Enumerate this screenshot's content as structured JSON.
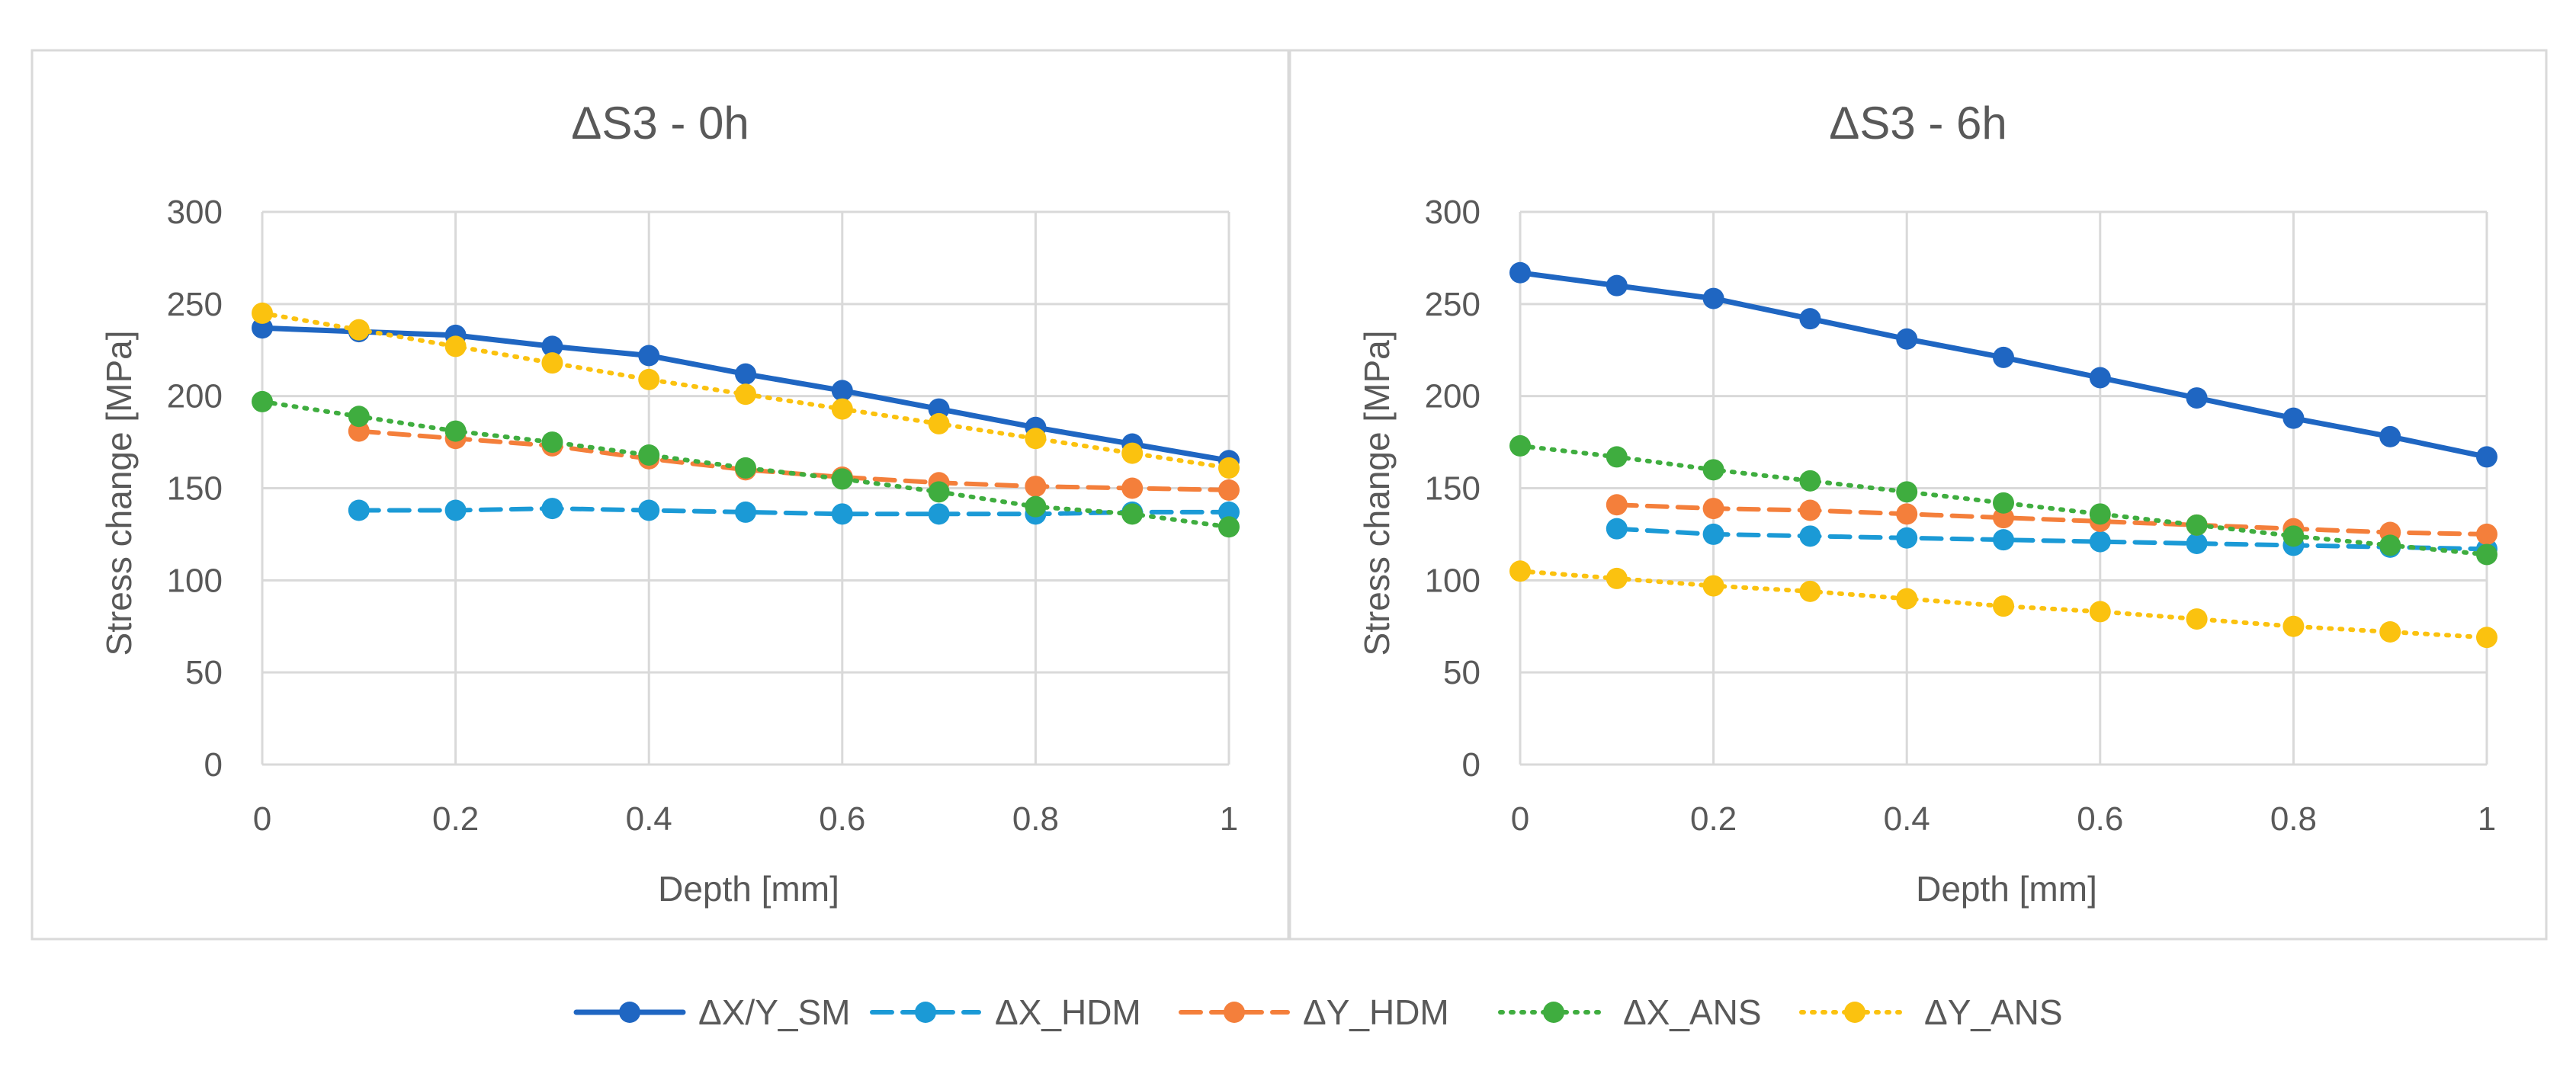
{
  "chart_data": [
    {
      "type": "line",
      "title": "ΔS3 - 0h",
      "xlabel": "Depth [mm]",
      "ylabel": "Stress change [MPa]",
      "xlim": [
        0,
        1
      ],
      "ylim": [
        0,
        300
      ],
      "xticks": [
        0,
        0.2,
        0.4,
        0.6,
        0.8,
        1
      ],
      "xtick_labels": [
        "0",
        "0.2",
        "0.4",
        "0.6",
        "0.8",
        "1"
      ],
      "yticks": [
        0,
        50,
        100,
        150,
        200,
        250,
        300
      ],
      "ytick_labels": [
        "0",
        "50",
        "100",
        "150",
        "200",
        "250",
        "300"
      ],
      "grid": true,
      "series": [
        {
          "name": "ΔX/Y_SM",
          "x": [
            0,
            0.1,
            0.2,
            0.3,
            0.4,
            0.5,
            0.6,
            0.7,
            0.8,
            0.9,
            1
          ],
          "values": [
            237,
            235,
            233,
            227,
            222,
            212,
            203,
            193,
            183,
            174,
            165
          ]
        },
        {
          "name": "ΔX_HDM",
          "x": [
            0.1,
            0.2,
            0.3,
            0.4,
            0.5,
            0.6,
            0.7,
            0.8,
            0.9,
            1
          ],
          "values": [
            138,
            138,
            139,
            138,
            137,
            136,
            136,
            136,
            137,
            137
          ]
        },
        {
          "name": "ΔY_HDM",
          "x": [
            0.1,
            0.2,
            0.3,
            0.4,
            0.5,
            0.6,
            0.7,
            0.8,
            0.9,
            1
          ],
          "values": [
            181,
            177,
            173,
            166,
            160,
            156,
            153,
            151,
            150,
            149
          ]
        },
        {
          "name": "ΔX_ANS",
          "x": [
            0,
            0.1,
            0.2,
            0.3,
            0.4,
            0.5,
            0.6,
            0.7,
            0.8,
            0.9,
            1
          ],
          "values": [
            197,
            189,
            181,
            175,
            168,
            161,
            155,
            148,
            140,
            136,
            129
          ]
        },
        {
          "name": "ΔY_ANS",
          "x": [
            0,
            0.1,
            0.2,
            0.3,
            0.4,
            0.5,
            0.6,
            0.7,
            0.8,
            0.9,
            1
          ],
          "values": [
            245,
            236,
            227,
            218,
            209,
            201,
            193,
            185,
            177,
            169,
            161
          ]
        }
      ]
    },
    {
      "type": "line",
      "title": "ΔS3 - 6h",
      "xlabel": "Depth [mm]",
      "ylabel": "Stress change [MPa]",
      "xlim": [
        0,
        1
      ],
      "ylim": [
        0,
        300
      ],
      "xticks": [
        0,
        0.2,
        0.4,
        0.6,
        0.8,
        1
      ],
      "xtick_labels": [
        "0",
        "0.2",
        "0.4",
        "0.6",
        "0.8",
        "1"
      ],
      "yticks": [
        0,
        50,
        100,
        150,
        200,
        250,
        300
      ],
      "ytick_labels": [
        "0",
        "50",
        "100",
        "150",
        "200",
        "250",
        "300"
      ],
      "grid": true,
      "series": [
        {
          "name": "ΔX/Y_SM",
          "x": [
            0,
            0.1,
            0.2,
            0.3,
            0.4,
            0.5,
            0.6,
            0.7,
            0.8,
            0.9,
            1
          ],
          "values": [
            267,
            260,
            253,
            242,
            231,
            221,
            210,
            199,
            188,
            178,
            167
          ]
        },
        {
          "name": "ΔX_HDM",
          "x": [
            0.1,
            0.2,
            0.3,
            0.4,
            0.5,
            0.6,
            0.7,
            0.8,
            0.9,
            1
          ],
          "values": [
            128,
            125,
            124,
            123,
            122,
            121,
            120,
            119,
            118,
            117
          ]
        },
        {
          "name": "ΔY_HDM",
          "x": [
            0.1,
            0.2,
            0.3,
            0.4,
            0.5,
            0.6,
            0.7,
            0.8,
            0.9,
            1
          ],
          "values": [
            141,
            139,
            138,
            136,
            134,
            132,
            130,
            128,
            126,
            125
          ]
        },
        {
          "name": "ΔX_ANS",
          "x": [
            0,
            0.1,
            0.2,
            0.3,
            0.4,
            0.5,
            0.6,
            0.7,
            0.8,
            0.9,
            1
          ],
          "values": [
            173,
            167,
            160,
            154,
            148,
            142,
            136,
            130,
            124,
            119,
            114
          ]
        },
        {
          "name": "ΔY_ANS",
          "x": [
            0,
            0.1,
            0.2,
            0.3,
            0.4,
            0.5,
            0.6,
            0.7,
            0.8,
            0.9,
            1
          ],
          "values": [
            105,
            101,
            97,
            94,
            90,
            86,
            83,
            79,
            75,
            72,
            69
          ]
        }
      ]
    }
  ],
  "legend": {
    "placement": "bottom-center",
    "entries": [
      {
        "name": "ΔX/Y_SM",
        "color": "#1f66c2",
        "dash": "solid"
      },
      {
        "name": "ΔX_HDM",
        "color": "#1b9ad6",
        "dash": "dashed"
      },
      {
        "name": "ΔY_HDM",
        "color": "#f47f3b",
        "dash": "dashed"
      },
      {
        "name": "ΔX_ANS",
        "color": "#3fad3f",
        "dash": "dotted"
      },
      {
        "name": "ΔY_ANS",
        "color": "#fbc20f",
        "dash": "dotted"
      }
    ]
  }
}
